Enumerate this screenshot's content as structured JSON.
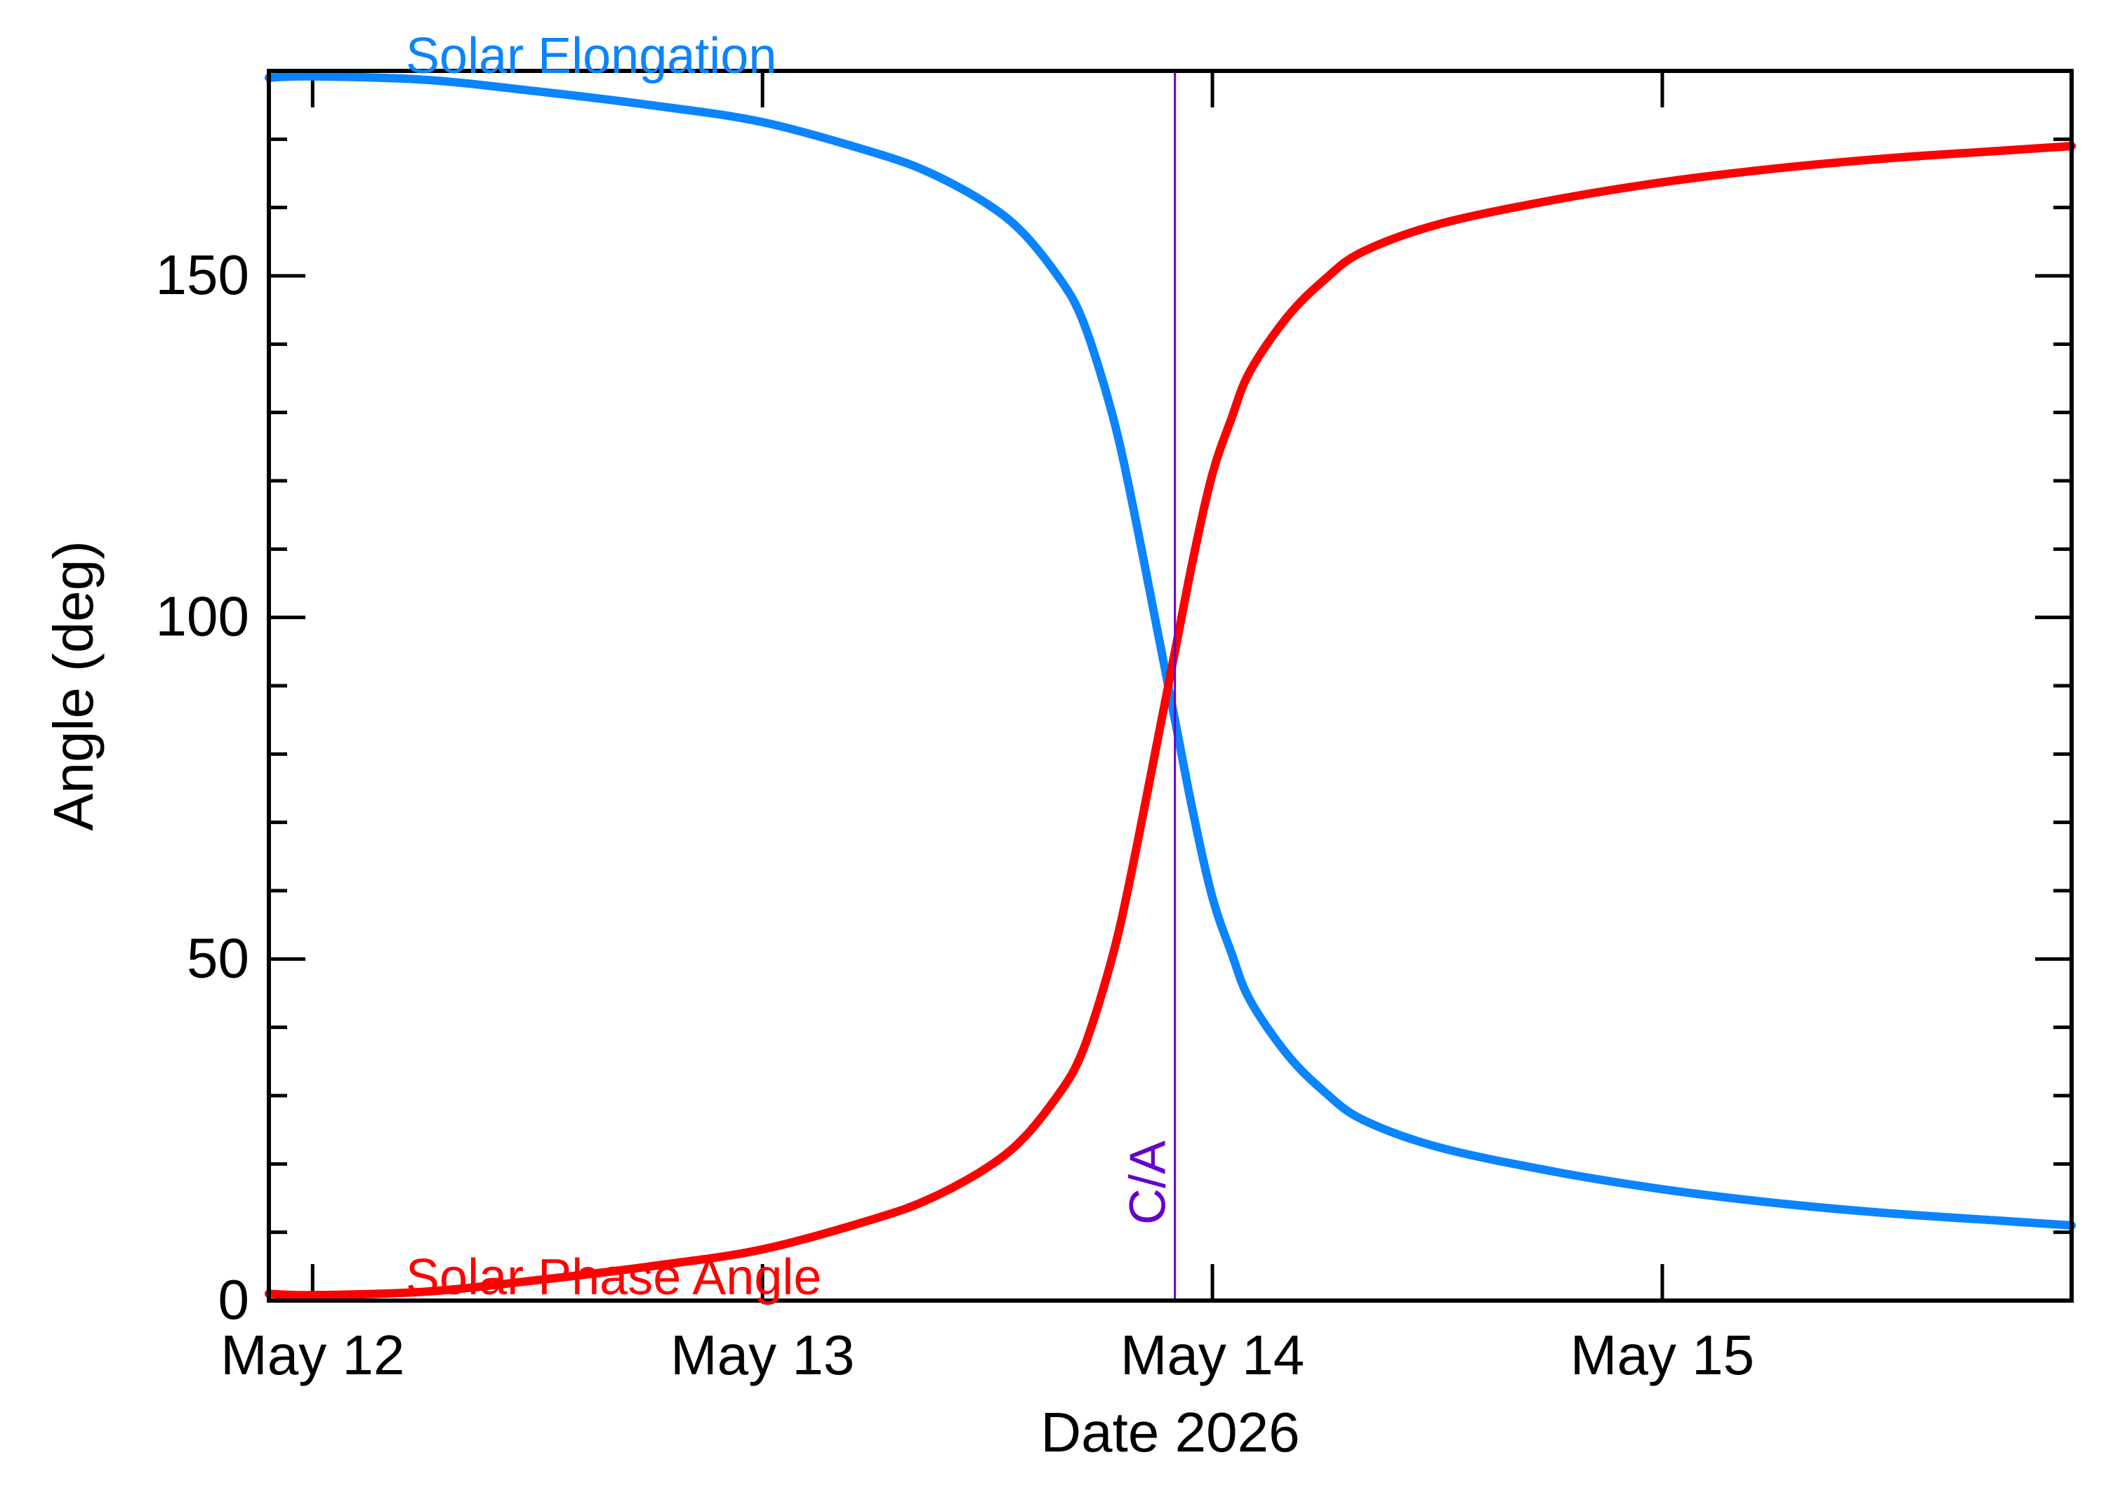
{
  "chart_data": {
    "type": "line",
    "xlabel": "Date 2026",
    "ylabel": "Angle (deg)",
    "x_ticks": [
      {
        "label": "May 12",
        "value": "2026-05-12"
      },
      {
        "label": "May 13",
        "value": "2026-05-13"
      },
      {
        "label": "May 14",
        "value": "2026-05-14"
      },
      {
        "label": "May 15",
        "value": "2026-05-15"
      }
    ],
    "xlim": [
      "2026-05-11 21:40",
      "2026-05-15 21:50"
    ],
    "ylim": [
      0,
      180
    ],
    "y_ticks": [
      0,
      50,
      100,
      150
    ],
    "y_minor_step": 10,
    "grid": false,
    "series": [
      {
        "name": "Solar Elongation",
        "color": "#0a84ff",
        "points": [
          [
            "2026-05-11 21:40",
            179.0
          ],
          [
            "2026-05-12 00:00",
            179.2
          ],
          [
            "2026-05-12 06:00",
            178.7
          ],
          [
            "2026-05-12 12:00",
            177.0
          ],
          [
            "2026-05-12 18:00",
            175.0
          ],
          [
            "2026-05-13 00:00",
            172.5
          ],
          [
            "2026-05-13 06:00",
            168.0
          ],
          [
            "2026-05-13 09:00",
            165.0
          ],
          [
            "2026-05-13 12:00",
            160.5
          ],
          [
            "2026-05-13 14:00",
            156.0
          ],
          [
            "2026-05-13 16:00",
            149.0
          ],
          [
            "2026-05-13 17:00",
            144.0
          ],
          [
            "2026-05-13 18:00",
            136.0
          ],
          [
            "2026-05-13 19:00",
            126.0
          ],
          [
            "2026-05-13 20:00",
            113.0
          ],
          [
            "2026-05-13 21:00",
            99.0
          ],
          [
            "2026-05-13 22:00",
            85.0
          ],
          [
            "2026-05-13 23:00",
            71.0
          ],
          [
            "2026-05-14 00:00",
            59.0
          ],
          [
            "2026-05-14 01:00",
            51.0
          ],
          [
            "2026-05-14 02:00",
            44.0
          ],
          [
            "2026-05-14 04:00",
            36.0
          ],
          [
            "2026-05-14 06:00",
            30.5
          ],
          [
            "2026-05-14 08:00",
            26.5
          ],
          [
            "2026-05-14 12:00",
            22.5
          ],
          [
            "2026-05-14 18:00",
            19.0
          ],
          [
            "2026-05-15 00:00",
            16.3
          ],
          [
            "2026-05-15 06:00",
            14.3
          ],
          [
            "2026-05-15 12:00",
            12.8
          ],
          [
            "2026-05-15 18:00",
            11.7
          ],
          [
            "2026-05-15 21:50",
            11.0
          ]
        ]
      },
      {
        "name": "Solar Phase Angle",
        "color": "#ff0000",
        "points": [
          [
            "2026-05-11 21:40",
            1.0
          ],
          [
            "2026-05-12 00:00",
            0.8
          ],
          [
            "2026-05-12 06:00",
            1.3
          ],
          [
            "2026-05-12 12:00",
            3.0
          ],
          [
            "2026-05-12 18:00",
            5.0
          ],
          [
            "2026-05-13 00:00",
            7.5
          ],
          [
            "2026-05-13 06:00",
            12.0
          ],
          [
            "2026-05-13 09:00",
            15.0
          ],
          [
            "2026-05-13 12:00",
            19.5
          ],
          [
            "2026-05-13 14:00",
            24.0
          ],
          [
            "2026-05-13 16:00",
            31.0
          ],
          [
            "2026-05-13 17:00",
            36.0
          ],
          [
            "2026-05-13 18:00",
            44.0
          ],
          [
            "2026-05-13 19:00",
            54.0
          ],
          [
            "2026-05-13 20:00",
            67.0
          ],
          [
            "2026-05-13 21:00",
            81.0
          ],
          [
            "2026-05-13 22:00",
            95.0
          ],
          [
            "2026-05-13 23:00",
            109.0
          ],
          [
            "2026-05-14 00:00",
            121.0
          ],
          [
            "2026-05-14 01:00",
            129.0
          ],
          [
            "2026-05-14 02:00",
            136.0
          ],
          [
            "2026-05-14 04:00",
            144.0
          ],
          [
            "2026-05-14 06:00",
            149.5
          ],
          [
            "2026-05-14 08:00",
            153.5
          ],
          [
            "2026-05-14 12:00",
            157.5
          ],
          [
            "2026-05-14 18:00",
            161.0
          ],
          [
            "2026-05-15 00:00",
            163.7
          ],
          [
            "2026-05-15 06:00",
            165.7
          ],
          [
            "2026-05-15 12:00",
            167.2
          ],
          [
            "2026-05-15 18:00",
            168.3
          ],
          [
            "2026-05-15 21:50",
            169.0
          ]
        ]
      }
    ],
    "annotations": [
      {
        "type": "vline",
        "label": "C/A",
        "x": "2026-05-13 22:00",
        "color": "#6600cc"
      }
    ]
  }
}
